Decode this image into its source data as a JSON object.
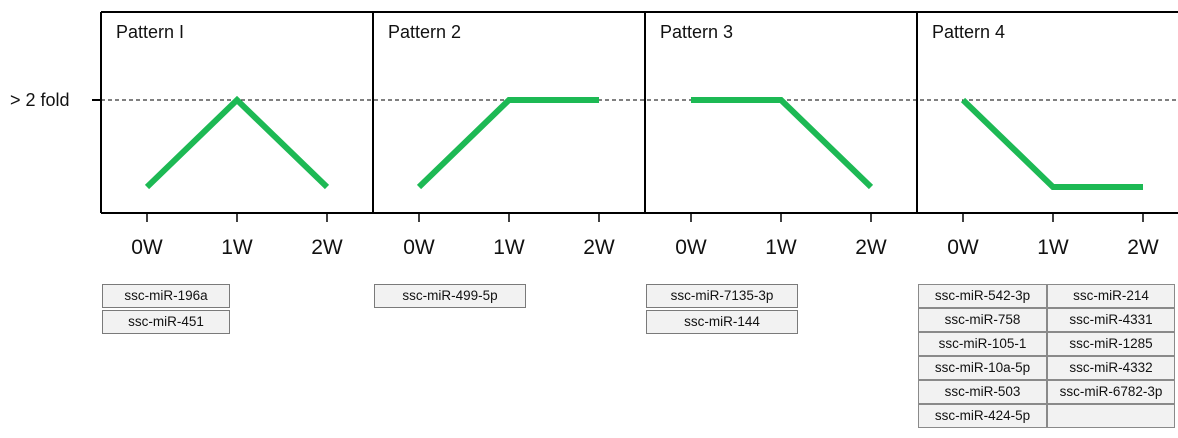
{
  "y_marker_label": "> 2 fold",
  "x_ticks": [
    "0W",
    "1W",
    "2W"
  ],
  "colors": {
    "line": "#1db954",
    "frame": "#000000",
    "box_fill": "#f2f2f2",
    "box_border": "#7a7a7a"
  },
  "patterns": [
    {
      "title": "Pattern I",
      "profile": [
        0,
        1,
        0
      ],
      "mirnas": [
        "ssc-miR-196a",
        "ssc-miR-451"
      ]
    },
    {
      "title": "Pattern 2",
      "profile": [
        0,
        1,
        1
      ],
      "mirnas": [
        "ssc-miR-499-5p"
      ]
    },
    {
      "title": "Pattern 3",
      "profile": [
        1,
        1,
        0
      ],
      "mirnas": [
        "ssc-miR-7135-3p",
        "ssc-miR-144"
      ]
    },
    {
      "title": "Pattern 4",
      "profile": [
        1,
        0,
        0
      ],
      "mirna_grid": [
        [
          "ssc-miR-542-3p",
          "ssc-miR-214"
        ],
        [
          "ssc-miR-758",
          "ssc-miR-4331"
        ],
        [
          "ssc-miR-105-1",
          "ssc-miR-1285"
        ],
        [
          "ssc-miR-10a-5p",
          "ssc-miR-4332"
        ],
        [
          "ssc-miR-503",
          "ssc-miR-6782-3p"
        ],
        [
          "ssc-miR-424-5p",
          ""
        ]
      ]
    }
  ]
}
